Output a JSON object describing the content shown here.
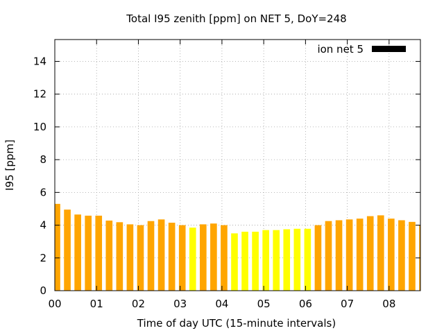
{
  "chart_data": {
    "type": "bar",
    "title": "Total I95 zenith [ppm] on NET 5, DoY=248",
    "xlabel": "Time of day UTC (15-minute intervals)",
    "ylabel": "I95 [ppm]",
    "xlim": [
      0,
      8.75
    ],
    "ylim": [
      0,
      15.333
    ],
    "x_ticks": [
      "00",
      "01",
      "02",
      "03",
      "04",
      "05",
      "06",
      "07",
      "08"
    ],
    "y_ticks": [
      "0",
      "2",
      "4",
      "6",
      "8",
      "10",
      "12",
      "14"
    ],
    "grid": true,
    "legend": {
      "placement": "top-right",
      "label": "ion net 5",
      "color": "#000000"
    },
    "colors": {
      "high": "#ffa500",
      "low": "#ffff00"
    },
    "series": [
      {
        "values": [
          5.3,
          4.95,
          4.65,
          4.58,
          4.58,
          4.28,
          4.18,
          4.05,
          4.0,
          4.25,
          4.35,
          4.15,
          4.0,
          3.85,
          4.05,
          4.1,
          4.0,
          3.5,
          3.6,
          3.6,
          3.7,
          3.7,
          3.75,
          3.78,
          3.78,
          4.0,
          4.25,
          4.3,
          4.35,
          4.4,
          4.55,
          4.6,
          4.4,
          4.3,
          4.2,
          4.0
        ],
        "colors": [
          "high",
          "high",
          "high",
          "high",
          "high",
          "high",
          "high",
          "high",
          "high",
          "high",
          "high",
          "high",
          "high",
          "low",
          "high",
          "high",
          "high",
          "low",
          "low",
          "low",
          "low",
          "low",
          "low",
          "low",
          "low",
          "high",
          "high",
          "high",
          "high",
          "high",
          "high",
          "high",
          "high",
          "high",
          "high",
          "high"
        ]
      }
    ]
  }
}
